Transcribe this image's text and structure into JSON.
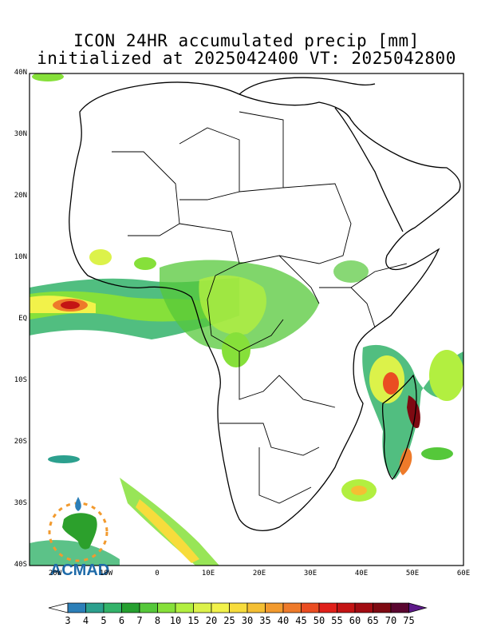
{
  "title": {
    "line1": "ICON 24HR accumulated precip [mm]",
    "line2": "initialized at 2025042400 VT: 2025042800"
  },
  "map": {
    "lat_ticks": [
      "40N",
      "30N",
      "20N",
      "10N",
      "EQ",
      "10S",
      "20S",
      "30S",
      "40S"
    ],
    "lon_ticks": [
      "20W",
      "10W",
      "0",
      "10E",
      "20E",
      "30E",
      "40E",
      "50E",
      "60E"
    ],
    "lon_range": [
      -25,
      60
    ],
    "lat_range": [
      -40,
      40
    ]
  },
  "colorbar": {
    "labels": [
      "3",
      "4",
      "5",
      "6",
      "7",
      "8",
      "10",
      "15",
      "20",
      "25",
      "30",
      "35",
      "40",
      "45",
      "50",
      "55",
      "60",
      "65",
      "70",
      "75"
    ],
    "colors": [
      "#ffffff",
      "#2c7fb8",
      "#2ca08e",
      "#33b36a",
      "#26a030",
      "#55c83a",
      "#86e03a",
      "#b2ef40",
      "#dcf24a",
      "#f2f24a",
      "#f7dc3c",
      "#f4bf33",
      "#f29a2e",
      "#ee7a2a",
      "#ea4d22",
      "#e0201a",
      "#c41414",
      "#a20c12",
      "#7e0a12",
      "#5a0630",
      "#5e1a8a"
    ]
  },
  "logo": {
    "text": "ACMAD"
  }
}
